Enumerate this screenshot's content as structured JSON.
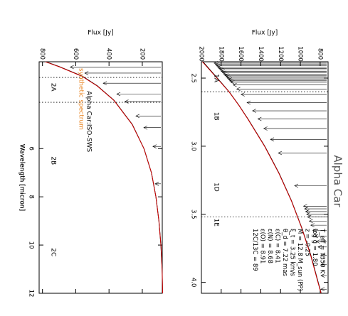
{
  "chart_data": [
    {
      "id": "left",
      "type": "line",
      "title": "",
      "xlabel": "Wavelength [micron]",
      "ylabel": "Flux [Jy]",
      "xlim": [
        2.4,
        12
      ],
      "ylim": [
        80,
        820
      ],
      "x_ticks": [
        "6",
        "8",
        "10",
        "12"
      ],
      "y_ticks": [
        "200",
        "400",
        "600",
        "800"
      ],
      "band_dividers": [
        3.05,
        4.08
      ],
      "band_labels": [
        {
          "text": "2A",
          "x": 3.45,
          "y": 735
        },
        {
          "text": "2B",
          "x": 6.5,
          "y": 735
        },
        {
          "text": "2C",
          "x": 10.3,
          "y": 735
        }
      ],
      "annotations": [
        {
          "text": "Alpha Car:ISO-SWS",
          "color": "#000000"
        },
        {
          "text": "synthetic spectrum",
          "color": "#e8821e"
        }
      ],
      "series": [
        {
          "color": "#000000",
          "x": [
            2.4,
            2.6,
            3.0,
            3.4,
            4.0,
            5.0,
            6.0,
            7.0,
            8.0,
            9.0,
            10.0,
            11.0,
            12.0
          ],
          "y": [
            780,
            700,
            560,
            470,
            370,
            260,
            190,
            145,
            118,
            100,
            88,
            81,
            78
          ]
        },
        {
          "color": "#e00000",
          "x": [
            2.4,
            2.6,
            3.0,
            3.4,
            4.0,
            5.0,
            6.0,
            7.0,
            8.0,
            9.0,
            10.0,
            11.0,
            12.0
          ],
          "y": [
            783,
            702,
            563,
            472,
            371,
            261,
            190,
            145,
            118,
            100,
            88,
            81,
            78
          ]
        }
      ],
      "line_markers_x": [
        2.62,
        2.87,
        3.29,
        3.74,
        4.05,
        4.65,
        5.13,
        5.91,
        7.46
      ]
    },
    {
      "id": "right",
      "type": "line",
      "title": "Alpha Car",
      "xlabel": "Wavelength [micron]",
      "ylabel": "Flux [Jy]",
      "xlim": [
        2.38,
        4.08
      ],
      "ylim": [
        720,
        2000
      ],
      "x_ticks": [
        "2.5",
        "3.0",
        "3.5",
        "4.0"
      ],
      "y_ticks": [
        "800",
        "1000",
        "1200",
        "1400",
        "1600",
        "1800",
        "2000"
      ],
      "band_dividers": [
        2.6,
        3.52
      ],
      "band_labels": [
        {
          "text": "1A",
          "x": 2.5,
          "y": 1850
        },
        {
          "text": "1B",
          "x": 2.78,
          "y": 1850
        },
        {
          "text": "1D",
          "x": 3.3,
          "y": 1850
        },
        {
          "text": "1E",
          "x": 3.56,
          "y": 1850
        }
      ],
      "annotations": [
        "T_eff = 7350 K",
        "log g = 1.80",
        "z = -0.25",
        "M = 12.8 M_sun (PP)",
        "ξ_t = 3.25 km/s",
        "θ_d = 7.22 mas",
        "ε(C) = 8.41",
        "ε(N) = 8.68",
        "ε(O) = 8.91",
        "12C/13C = 89"
      ],
      "series": [
        {
          "color": "#000000",
          "x": [
            2.38,
            2.5,
            2.6,
            2.7,
            2.8,
            3.0,
            3.2,
            3.4,
            3.6,
            3.8,
            4.0,
            4.08
          ],
          "y": [
            1985,
            1840,
            1720,
            1620,
            1530,
            1360,
            1215,
            1090,
            985,
            895,
            820,
            790
          ]
        },
        {
          "color": "#e00000",
          "x": [
            2.38,
            2.5,
            2.6,
            2.7,
            2.8,
            3.0,
            3.2,
            3.4,
            3.6,
            3.8,
            4.0,
            4.08
          ],
          "y": [
            1990,
            1843,
            1722,
            1622,
            1532,
            1362,
            1217,
            1092,
            987,
            897,
            822,
            791
          ]
        }
      ],
      "line_markers_x": [
        2.39,
        2.4,
        2.41,
        2.42,
        2.43,
        2.44,
        2.45,
        2.46,
        2.47,
        2.48,
        2.49,
        2.5,
        2.51,
        2.52,
        2.53,
        2.55,
        2.58,
        2.62,
        2.68,
        2.74,
        2.8,
        2.87,
        2.95,
        3.05,
        3.29,
        3.44,
        3.46,
        3.48,
        3.5,
        3.52,
        3.55,
        3.58,
        3.62,
        3.66,
        3.7,
        3.74,
        3.8,
        3.87,
        3.95,
        4.05
      ]
    }
  ]
}
